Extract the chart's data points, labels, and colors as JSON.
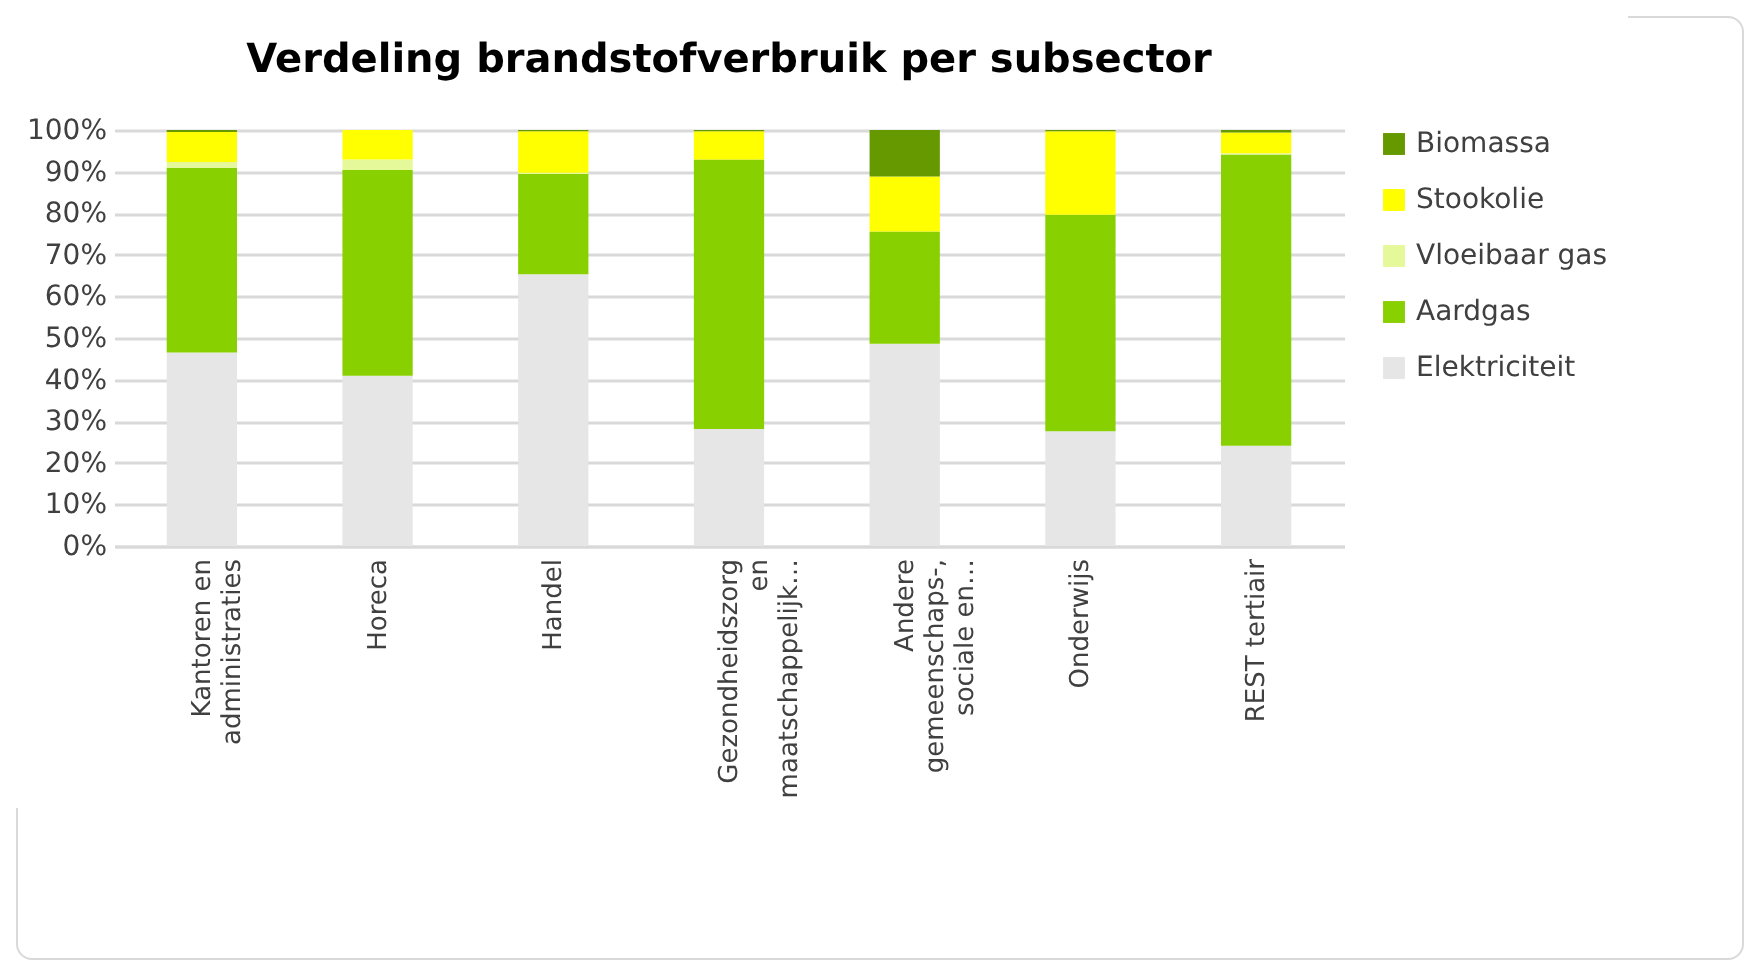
{
  "chart_data": {
    "type": "bar",
    "title": "Verdeling brandstofverbruik per subsector",
    "stacked": true,
    "categories": [
      "Kantoren en administraties",
      "Horeca",
      "Handel",
      "Gezondheidszorg en maatschappelijk…",
      "Andere gemeenschaps-, sociale en…",
      "Onderwijs",
      "REST tertiair"
    ],
    "series": [
      {
        "name": "Elektriciteit",
        "color": "#e6e6e6",
        "values": [
          46.5,
          40.9,
          65.3,
          28.1,
          48.6,
          27.6,
          24.1
        ]
      },
      {
        "name": "Aardgas",
        "color": "#88d000",
        "values": [
          44.4,
          49.5,
          24.1,
          64.8,
          27.0,
          52.0,
          70.0
        ]
      },
      {
        "name": "Vloeibaar gas",
        "color": "#e5f99a",
        "values": [
          1.4,
          2.5,
          0.3,
          0,
          0,
          0,
          0.3
        ]
      },
      {
        "name": "Stookolie",
        "color": "#ffff00",
        "values": [
          7.2,
          7.1,
          10.0,
          6.8,
          13.2,
          20.1,
          5.0
        ]
      },
      {
        "name": "Biomassa",
        "color": "#669900",
        "values": [
          0.5,
          0,
          0.3,
          0.3,
          11.2,
          0.3,
          0.6
        ]
      }
    ],
    "ylim": [
      0,
      100
    ],
    "yticks": [
      {
        "value": 0,
        "label": "0%"
      },
      {
        "value": 10,
        "label": "10%"
      },
      {
        "value": 20,
        "label": "20%"
      },
      {
        "value": 30,
        "label": "30%"
      },
      {
        "value": 40,
        "label": "40%"
      },
      {
        "value": 50,
        "label": "50%"
      },
      {
        "value": 60,
        "label": "60%"
      },
      {
        "value": 70,
        "label": "70%"
      },
      {
        "value": 80,
        "label": "80%"
      },
      {
        "value": 90,
        "label": "90%"
      },
      {
        "value": 100,
        "label": "100%"
      }
    ],
    "grid": "y",
    "legend": "right"
  }
}
